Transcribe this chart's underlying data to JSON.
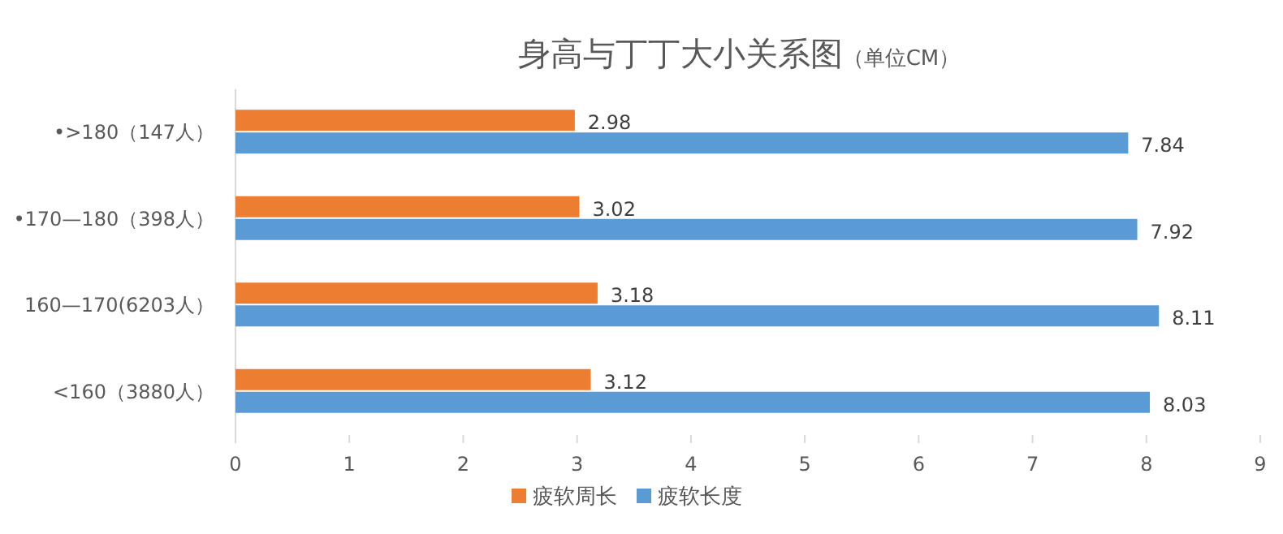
{
  "chart_data": {
    "type": "bar",
    "orientation": "horizontal",
    "title": "身高与丁丁大小关系图",
    "subtitle": "（单位CM）",
    "categories": [
      "•>180（147人）",
      "•170—180（398人）",
      "160—170(6203人）",
      "<160（3880人）"
    ],
    "series": [
      {
        "name": "疲软周长",
        "color": "#ed7d31",
        "values": [
          2.98,
          3.02,
          3.18,
          3.12
        ]
      },
      {
        "name": "疲软长度",
        "color": "#5b9bd5",
        "values": [
          7.84,
          7.92,
          8.11,
          8.03
        ]
      }
    ],
    "xlim": [
      0,
      9
    ],
    "xticks": [
      0,
      1,
      2,
      3,
      4,
      5,
      6,
      7,
      8,
      9
    ],
    "data_labels": true,
    "legend": "bottom",
    "grid": false
  }
}
